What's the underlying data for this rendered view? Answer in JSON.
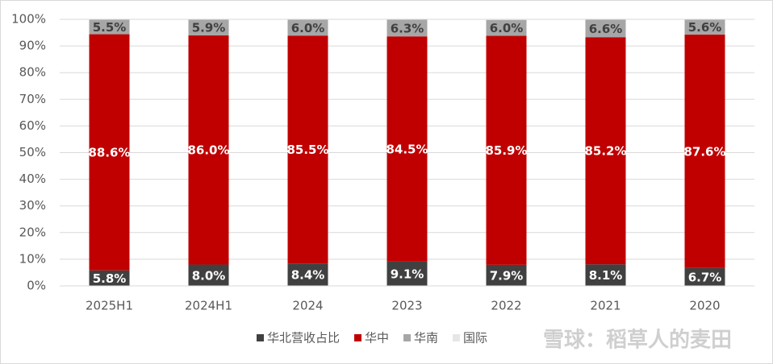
{
  "chart_data": {
    "type": "stacked_bar",
    "categories": [
      "2025H1",
      "2024H1",
      "2024",
      "2023",
      "2022",
      "2021",
      "2020"
    ],
    "series": [
      {
        "name": "华北营收占比",
        "color": "#404040",
        "values": [
          5.8,
          8.0,
          8.4,
          9.1,
          7.9,
          8.1,
          6.7
        ],
        "value_labels": [
          "5.8%",
          "8.0%",
          "8.4%",
          "9.1%",
          "7.9%",
          "8.1%",
          "6.7%"
        ]
      },
      {
        "name": "华中",
        "color": "#c00000",
        "values": [
          88.6,
          86.0,
          85.5,
          84.5,
          85.9,
          85.2,
          87.6
        ],
        "value_labels": [
          "88.6%",
          "86.0%",
          "85.5%",
          "84.5%",
          "85.9%",
          "85.2%",
          "87.6%"
        ]
      },
      {
        "name": "华南",
        "color": "#a6a6a6",
        "values": [
          5.5,
          5.9,
          6.0,
          6.3,
          6.0,
          6.6,
          5.6
        ],
        "value_labels": [
          "5.5%",
          "5.9%",
          "6.0%",
          "6.3%",
          "6.0%",
          "6.6%",
          "5.6%"
        ]
      },
      {
        "name": "国际",
        "color": "#e7e6e6",
        "values": [
          0.1,
          0.1,
          0.1,
          0.1,
          0.2,
          0.1,
          0.1
        ]
      }
    ],
    "ylim": [
      0,
      100
    ],
    "yticks": [
      {
        "value": 0,
        "label": "0%"
      },
      {
        "value": 10,
        "label": "10%"
      },
      {
        "value": 20,
        "label": "20%"
      },
      {
        "value": 30,
        "label": "30%"
      },
      {
        "value": 40,
        "label": "40%"
      },
      {
        "value": 50,
        "label": "50%"
      },
      {
        "value": 60,
        "label": "60%"
      },
      {
        "value": 70,
        "label": "70%"
      },
      {
        "value": 80,
        "label": "80%"
      },
      {
        "value": 90,
        "label": "90%"
      },
      {
        "value": 100,
        "label": "100%"
      }
    ],
    "grid": true,
    "watermark": "雪球：稻草人的麦田"
  }
}
